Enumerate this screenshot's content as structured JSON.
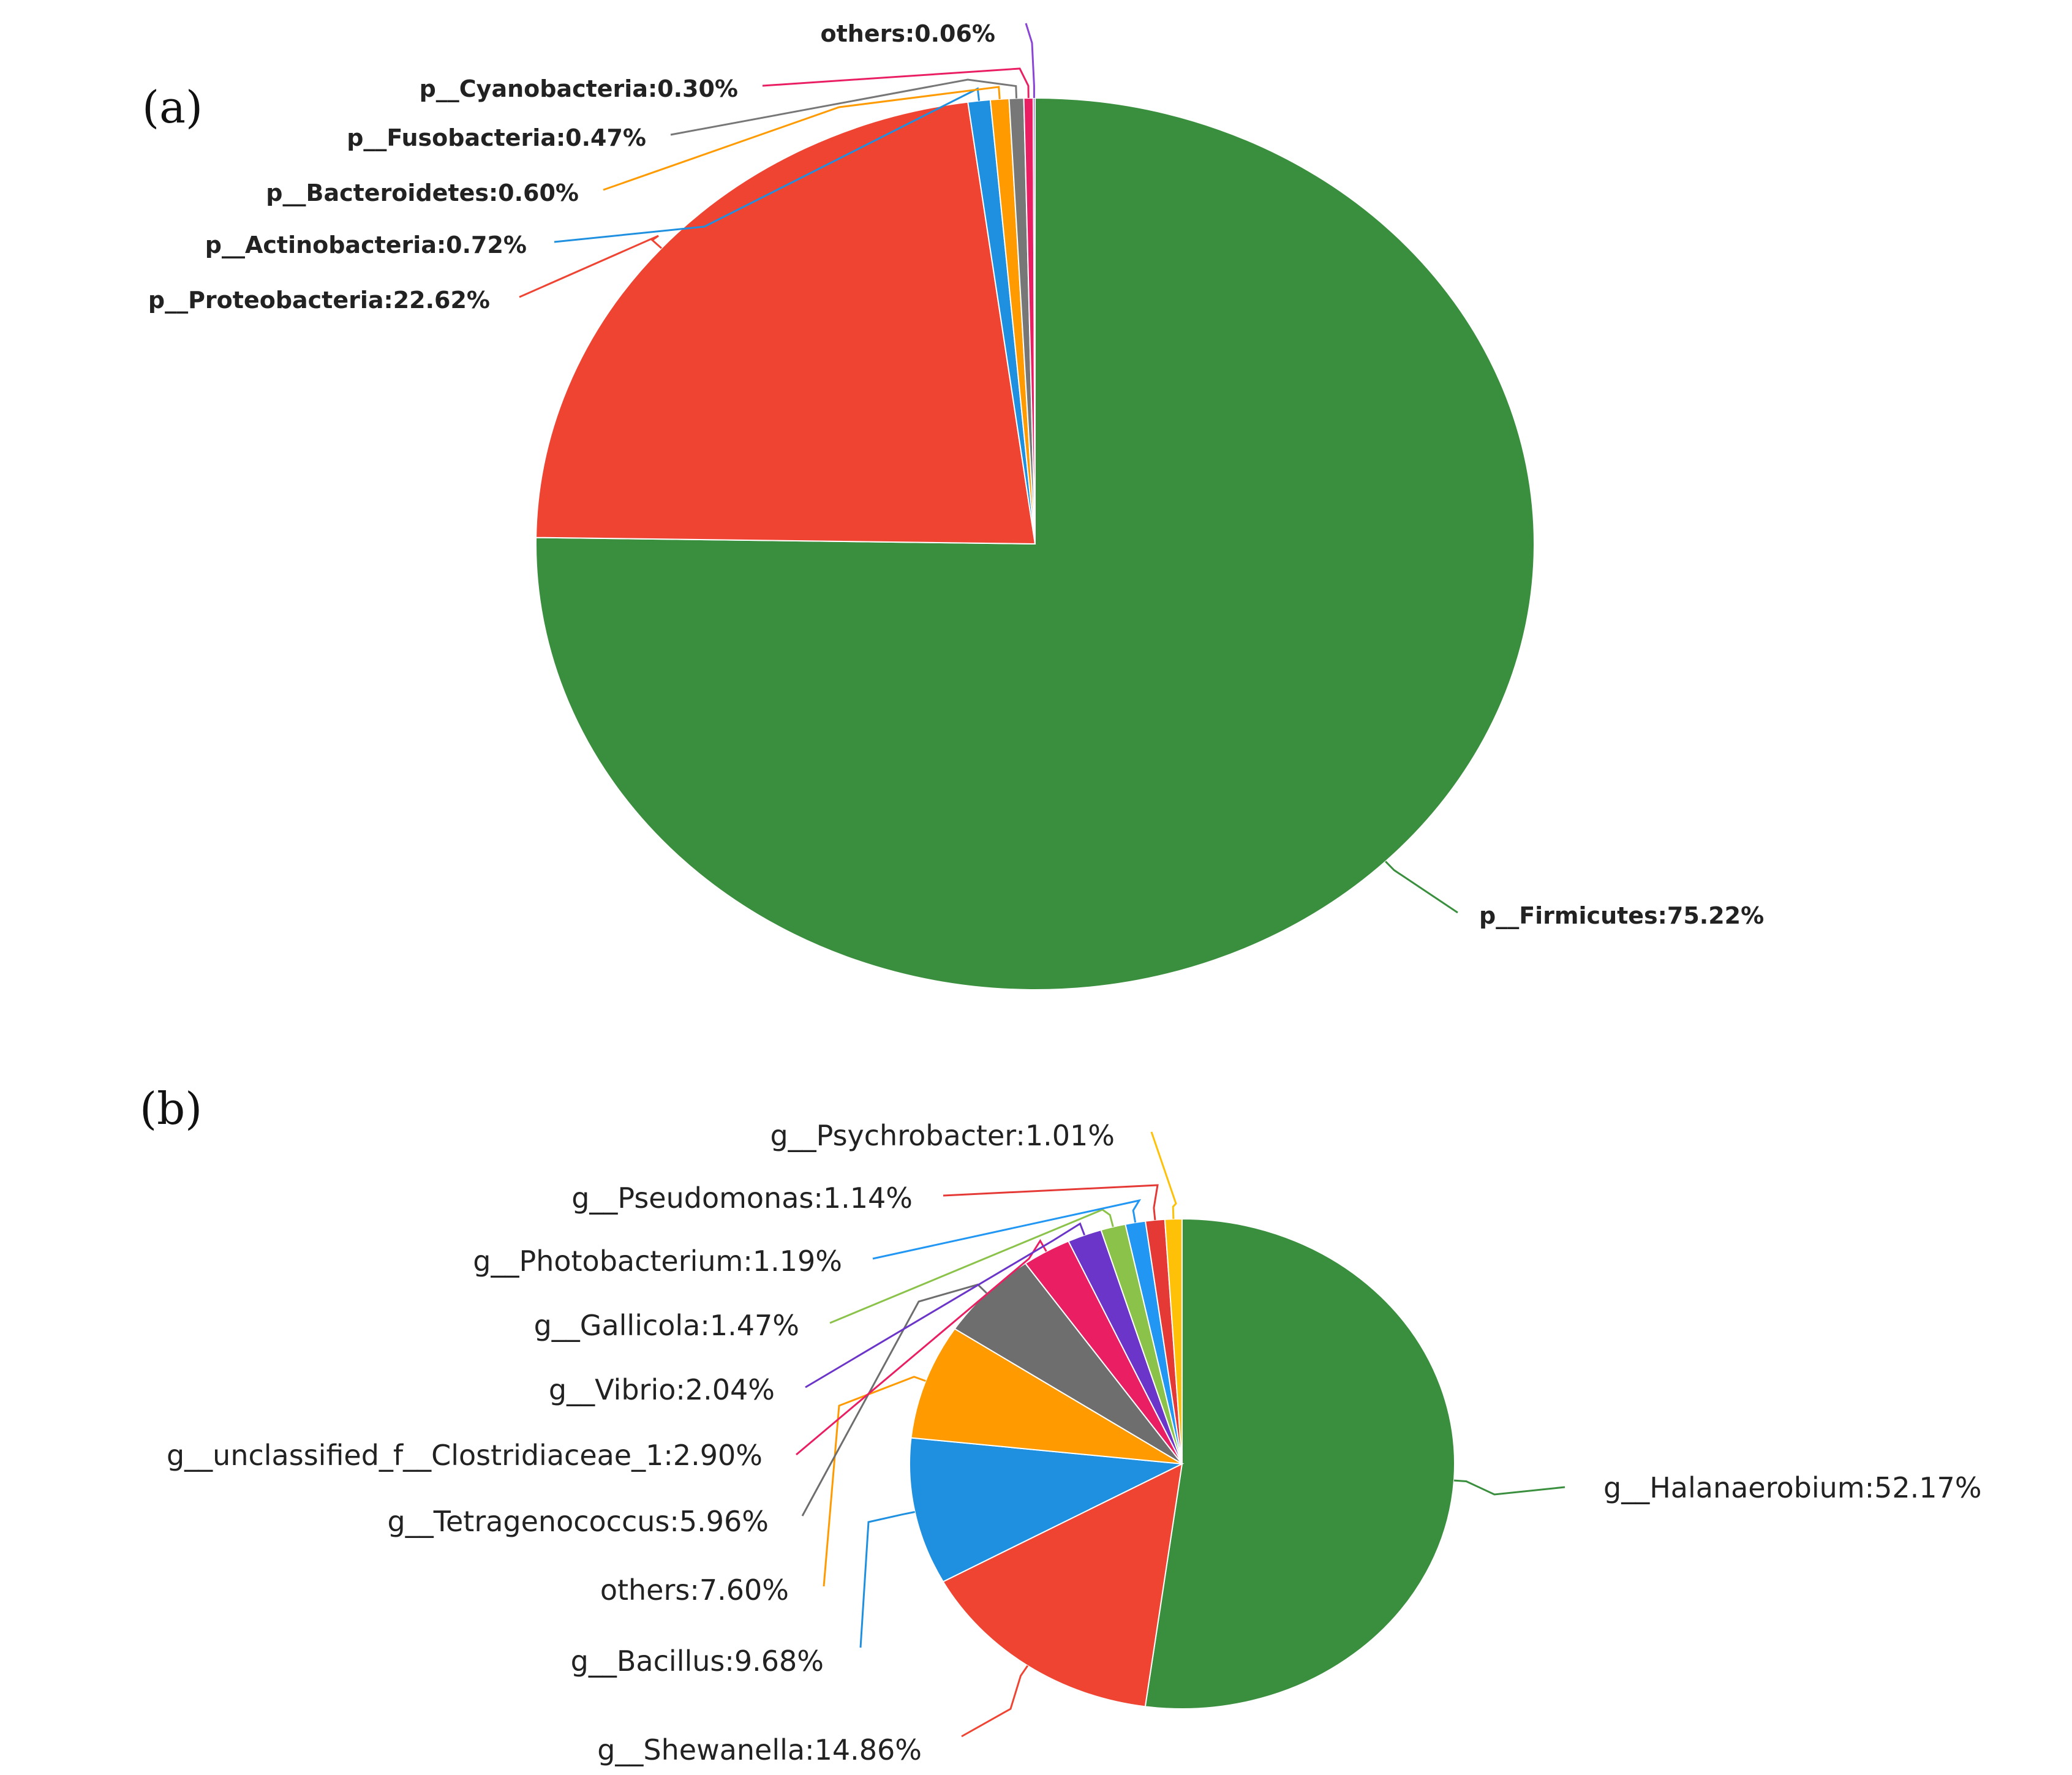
{
  "chart_data": [
    {
      "type": "pie",
      "panel_label": "(a)",
      "slices": [
        {
          "label": "p__Firmicutes:75.22%",
          "value": 75.22,
          "color": "#3a8f3e"
        },
        {
          "label": "p__Proteobacteria:22.62%",
          "value": 22.62,
          "color": "#f04433"
        },
        {
          "label": "p__Actinobacteria:0.72%",
          "value": 0.72,
          "color": "#1f8fe0"
        },
        {
          "label": "p__Bacteroidetes:0.60%",
          "value": 0.6,
          "color": "#ff9a00"
        },
        {
          "label": "p__Fusobacteria:0.47%",
          "value": 0.47,
          "color": "#777777"
        },
        {
          "label": "p__Cyanobacteria:0.30%",
          "value": 0.3,
          "color": "#e91e63"
        },
        {
          "label": "others:0.06%",
          "value": 0.06,
          "color": "#8a45d6"
        }
      ]
    },
    {
      "type": "pie",
      "panel_label": "(b)",
      "slices": [
        {
          "label": "g__Halanaerobium:52.17%",
          "value": 52.17,
          "color": "#3a8f3e"
        },
        {
          "label": "g__Shewanella:14.86%",
          "value": 14.86,
          "color": "#f04433"
        },
        {
          "label": "g__Bacillus:9.68%",
          "value": 9.68,
          "color": "#1f8fe0"
        },
        {
          "label": "others:7.60%",
          "value": 7.6,
          "color": "#ff9a00"
        },
        {
          "label": "g__Tetragenococcus:5.96%",
          "value": 5.96,
          "color": "#6e6e6e"
        },
        {
          "label": "g__unclassified_f__Clostridiaceae_1:2.90%",
          "value": 2.9,
          "color": "#e91e63"
        },
        {
          "label": "g__Vibrio:2.04%",
          "value": 2.04,
          "color": "#6a35c8"
        },
        {
          "label": "g__Gallicola:1.47%",
          "value": 1.47,
          "color": "#8bc34a"
        },
        {
          "label": "g__Photobacterium:1.19%",
          "value": 1.19,
          "color": "#2196f3"
        },
        {
          "label": "g__Pseudomonas:1.14%",
          "value": 1.14,
          "color": "#e53935"
        },
        {
          "label": "g__Psychrobacter:1.01%",
          "value": 1.01,
          "color": "#ffc107"
        }
      ]
    }
  ]
}
